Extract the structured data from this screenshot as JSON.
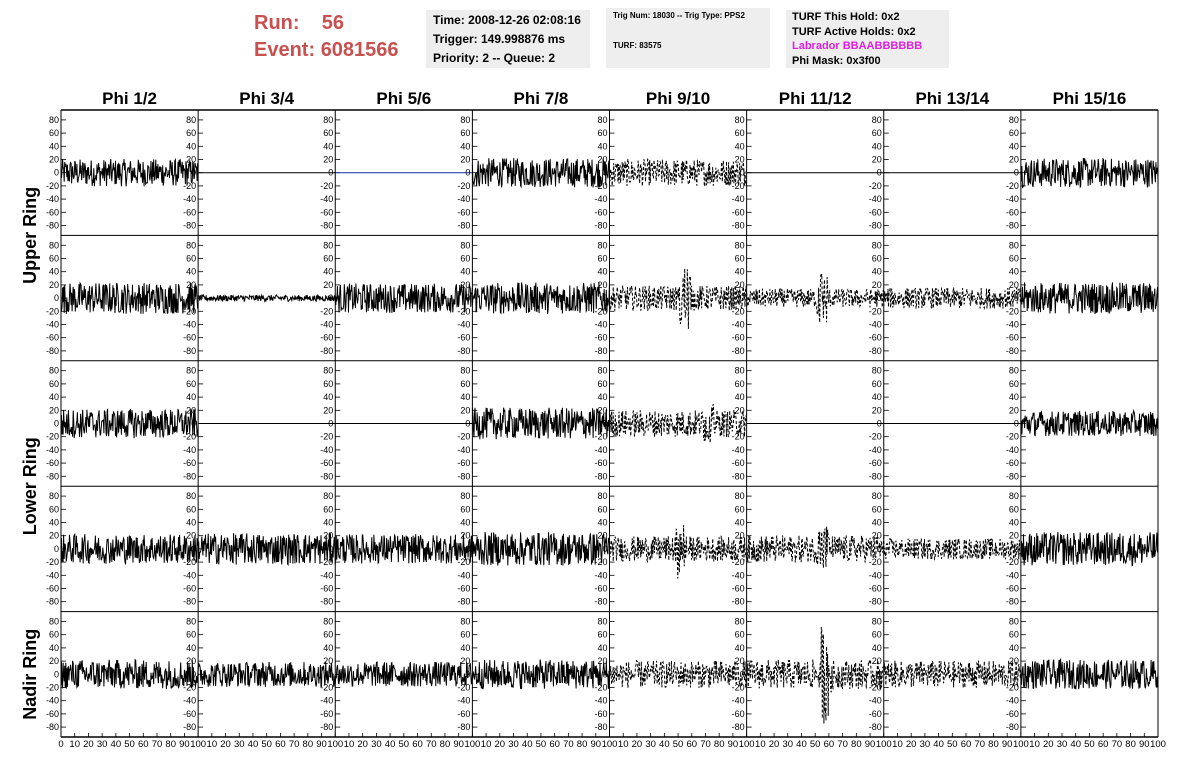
{
  "header": {
    "run_label": "Run:",
    "run_value": "56",
    "event_label": "Event:",
    "event_value": "6081566",
    "time": "Time: 2008-12-26 02:08:16",
    "trigger": "Trigger: 149.998876 ms",
    "priority": "Priority: 2 -- Queue: 2",
    "trig_num": "Trig Num: 18030 -- Trig Type: PPS2",
    "turf": "TURF: 83575",
    "turf_this_hold": "TURF This Hold: 0x2",
    "turf_active_holds": "TURF Active Holds: 0x2",
    "labrador": "Labrador BBAABBBBBB",
    "phi_mask": "Phi Mask: 0x3f00"
  },
  "colors": {
    "run_text": "#c8504f",
    "labrador_text": "#e020e0",
    "info_box_bg": "#eeeeee",
    "flat_trace_blue": "#1a2f9a",
    "trace": "#000000"
  },
  "chart_data": {
    "type": "line",
    "columns": [
      "Phi 1/2",
      "Phi 3/4",
      "Phi 5/6",
      "Phi 7/8",
      "Phi 9/10",
      "Phi 11/12",
      "Phi 13/14",
      "Phi 15/16"
    ],
    "ring_labels": [
      "Upper Ring",
      "Lower Ring",
      "Nadir Ring"
    ],
    "rows": 5,
    "y_ticks": [
      80,
      60,
      40,
      20,
      0,
      -20,
      -40,
      -60,
      -80
    ],
    "y_range": [
      -95,
      95
    ],
    "x_range": [
      0,
      100
    ],
    "x_ticks": [
      0,
      10,
      20,
      30,
      40,
      50,
      60,
      70,
      80,
      90,
      100
    ],
    "samples_per_trace": 260,
    "dashed_columns": [
      4,
      5,
      6
    ],
    "panel_traces": [
      [
        {
          "amp": 13,
          "style": "noise"
        },
        {
          "amp": 0,
          "style": "flat"
        },
        {
          "amp": 0,
          "style": "flat_blue"
        },
        {
          "amp": 14,
          "style": "noise"
        },
        {
          "amp": 13,
          "style": "noise"
        },
        {
          "amp": 0,
          "style": "flat"
        },
        {
          "amp": 0,
          "style": "flat"
        },
        {
          "amp": 14,
          "style": "noise"
        }
      ],
      [
        {
          "amp": 15,
          "style": "noise"
        },
        {
          "amp": 3,
          "style": "noise"
        },
        {
          "amp": 14,
          "style": "noise"
        },
        {
          "amp": 15,
          "style": "noise"
        },
        {
          "amp": 12,
          "style": "noise",
          "spike_at": 0.55,
          "spike_amp": 55
        },
        {
          "amp": 9,
          "style": "noise",
          "spike_at": 0.55,
          "spike_amp": 45
        },
        {
          "amp": 10,
          "style": "noise"
        },
        {
          "amp": 15,
          "style": "noise"
        }
      ],
      [
        {
          "amp": 14,
          "style": "noise"
        },
        {
          "amp": 0,
          "style": "flat"
        },
        {
          "amp": 0,
          "style": "flat"
        },
        {
          "amp": 15,
          "style": "noise"
        },
        {
          "amp": 13,
          "style": "noise",
          "spike_at": 0.72,
          "spike_amp": 30
        },
        {
          "amp": 0,
          "style": "flat"
        },
        {
          "amp": 0,
          "style": "flat"
        },
        {
          "amp": 12,
          "style": "noise"
        }
      ],
      [
        {
          "amp": 14,
          "style": "noise"
        },
        {
          "amp": 15,
          "style": "noise"
        },
        {
          "amp": 14,
          "style": "noise"
        },
        {
          "amp": 16,
          "style": "noise"
        },
        {
          "amp": 12,
          "style": "noise",
          "spike_at": 0.52,
          "spike_amp": 45
        },
        {
          "amp": 13,
          "style": "noise",
          "spike_at": 0.55,
          "spike_amp": 40
        },
        {
          "amp": 10,
          "style": "noise"
        },
        {
          "amp": 16,
          "style": "noise"
        }
      ],
      [
        {
          "amp": 14,
          "style": "noise"
        },
        {
          "amp": 12,
          "style": "noise"
        },
        {
          "amp": 12,
          "style": "noise"
        },
        {
          "amp": 14,
          "style": "noise"
        },
        {
          "amp": 13,
          "style": "noise"
        },
        {
          "amp": 14,
          "style": "noise",
          "spike_at": 0.58,
          "spike_amp": 75
        },
        {
          "amp": 13,
          "style": "noise"
        },
        {
          "amp": 14,
          "style": "noise"
        }
      ]
    ]
  }
}
